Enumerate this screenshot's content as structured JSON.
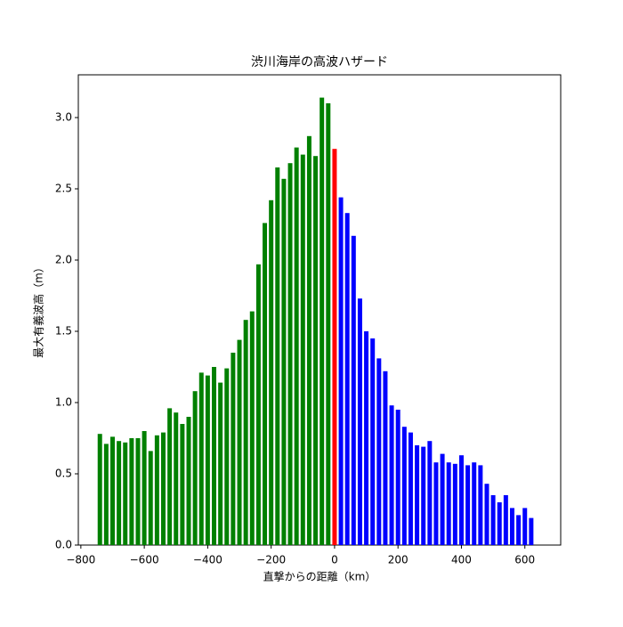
{
  "chart_data": {
    "type": "bar",
    "title": "渋川海岸の高波ハザード",
    "xlabel": "直撃からの距離（km）",
    "ylabel": "最大有義波高（m）",
    "series": [
      {
        "color": "#008000",
        "x": [
          -740,
          -720,
          -700,
          -680,
          -660,
          -640,
          -620,
          -600,
          -580,
          -560,
          -540,
          -520,
          -500,
          -480,
          -460,
          -440,
          -420,
          -400,
          -380,
          -360,
          -340,
          -320,
          -300,
          -280,
          -260,
          -240,
          -220,
          -200,
          -180,
          -160,
          -140,
          -120,
          -100,
          -80,
          -60,
          -40,
          -20
        ],
        "values": [
          0.78,
          0.71,
          0.76,
          0.73,
          0.72,
          0.75,
          0.75,
          0.8,
          0.66,
          0.77,
          0.79,
          0.96,
          0.93,
          0.85,
          0.9,
          1.08,
          1.21,
          1.19,
          1.25,
          1.14,
          1.24,
          1.35,
          1.44,
          1.58,
          1.64,
          1.97,
          2.26,
          2.42,
          2.65,
          2.57,
          2.68,
          2.79,
          2.74,
          2.87,
          2.73,
          3.14,
          3.1
        ]
      },
      {
        "color": "#ff0000",
        "x": [
          0
        ],
        "values": [
          2.78
        ]
      },
      {
        "color": "#0000ff",
        "x": [
          20,
          40,
          60,
          80,
          100,
          120,
          140,
          160,
          180,
          200,
          220,
          240,
          260,
          280,
          300,
          320,
          340,
          360,
          380,
          400,
          420,
          440,
          460,
          480,
          500,
          520,
          540,
          560,
          580,
          600,
          620
        ],
        "values": [
          2.44,
          2.33,
          2.17,
          1.73,
          1.5,
          1.45,
          1.31,
          1.22,
          0.98,
          0.95,
          0.83,
          0.79,
          0.7,
          0.69,
          0.73,
          0.58,
          0.64,
          0.58,
          0.57,
          0.63,
          0.56,
          0.58,
          0.56,
          0.43,
          0.35,
          0.3,
          0.35,
          0.26,
          0.21,
          0.26,
          0.19
        ]
      }
    ],
    "bar_width": 14,
    "xlim": [
      -808,
      713
    ],
    "xticks": [
      {
        "value": -800,
        "label": "−800"
      },
      {
        "value": -600,
        "label": "−600"
      },
      {
        "value": -400,
        "label": "−400"
      },
      {
        "value": -200,
        "label": "−200"
      },
      0,
      200,
      400,
      600
    ],
    "ylim": [
      0,
      3.3
    ],
    "yticks": [
      {
        "value": 0,
        "label": "0.0"
      },
      {
        "value": 0.5,
        "label": "0.5"
      },
      {
        "value": 1,
        "label": "1.0"
      },
      {
        "value": 1.5,
        "label": "1.5"
      },
      {
        "value": 2,
        "label": "2.0"
      },
      {
        "value": 2.5,
        "label": "2.5"
      },
      {
        "value": 3,
        "label": "3.0"
      }
    ]
  }
}
